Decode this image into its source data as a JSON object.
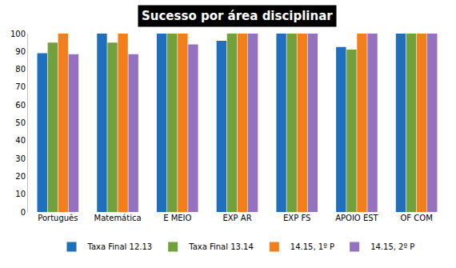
{
  "chart_data": {
    "type": "bar",
    "title": "Sucesso por área disciplinar",
    "categories": [
      "Português",
      "Matemática",
      "E MEIO",
      "EXP AR",
      "EXP FS",
      "APOIO EST",
      "OF COM"
    ],
    "series": [
      {
        "name": "Taxa Final 12.13",
        "color": "#1f6fbd",
        "values": [
          89,
          100,
          100,
          96,
          100,
          92.5,
          100
        ]
      },
      {
        "name": "Taxa Final 13.14",
        "color": "#72a03d",
        "values": [
          95,
          95,
          100,
          100,
          100,
          91,
          100
        ]
      },
      {
        "name": "14.15, 1º P",
        "color": "#f27f1b",
        "values": [
          100,
          100,
          100,
          100,
          100,
          100,
          100
        ]
      },
      {
        "name": "14.15, 2º P",
        "color": "#9472c0",
        "values": [
          88.5,
          88.5,
          94,
          100,
          100,
          100,
          100
        ]
      }
    ],
    "ylim": [
      0,
      100
    ],
    "yticks": [
      0,
      10,
      20,
      30,
      40,
      50,
      60,
      70,
      80,
      90,
      100
    ],
    "grid": false,
    "legend": "bottom"
  }
}
